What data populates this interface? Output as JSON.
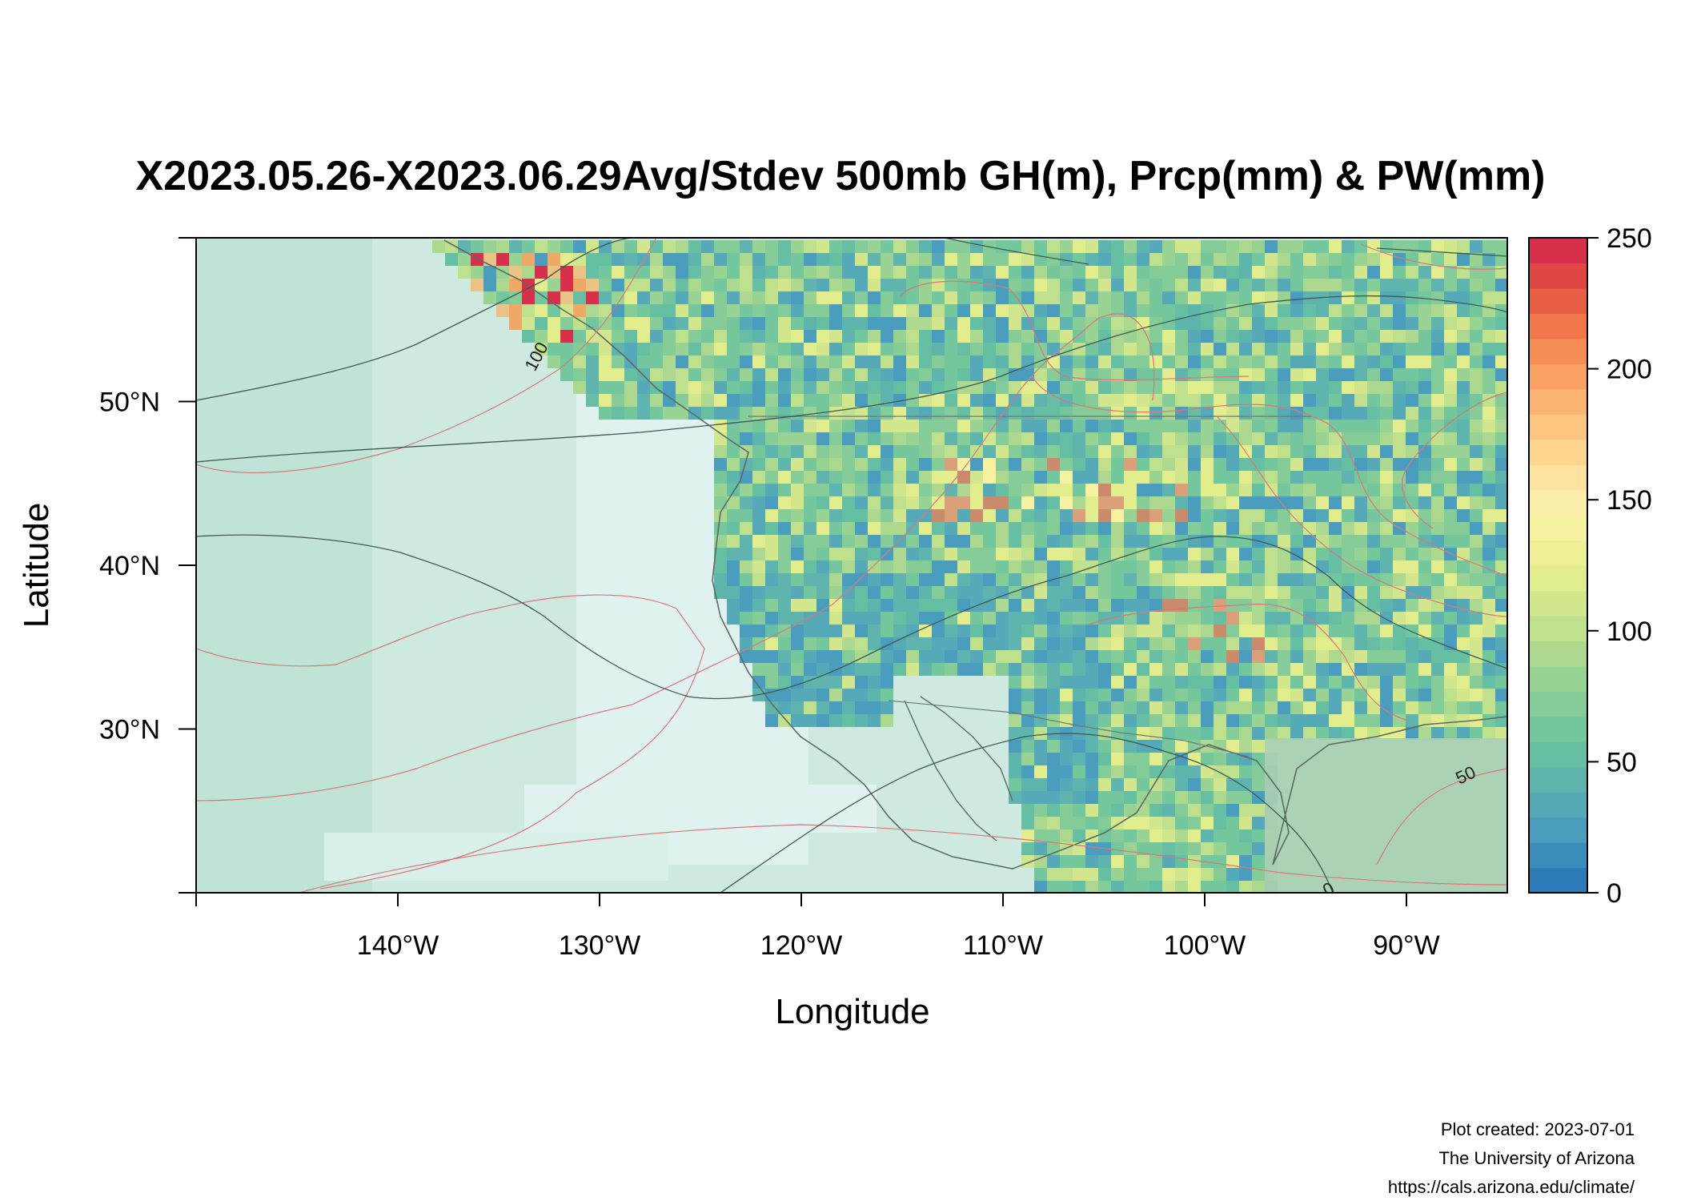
{
  "title": "X2023.05.26-X2023.06.29Avg/Stdev 500mb GH(m), Prcp(mm) & PW(mm)",
  "axes": {
    "x_label": "Longitude",
    "y_label": "Latitude",
    "x_ticks": [
      -140,
      -130,
      -120,
      -110,
      -100,
      -90
    ],
    "x_tick_labels": [
      "140°W",
      "130°W",
      "120°W",
      "110°W",
      "100°W",
      "90°W"
    ],
    "y_ticks": [
      30,
      40,
      50
    ],
    "y_tick_labels": [
      "30°N",
      "40°N",
      "50°N"
    ],
    "x_range": [
      -150,
      -85
    ],
    "y_range": [
      20,
      60
    ]
  },
  "colorbar": {
    "min": 0,
    "max": 250,
    "tick_values": [
      0,
      50,
      100,
      150,
      200,
      250
    ],
    "tick_labels": [
      "0",
      "50",
      "100",
      "150",
      "200",
      "250"
    ],
    "colors": [
      "#2c7bb6",
      "#3a8cbb",
      "#4a9dbc",
      "#56aab8",
      "#5fb5ad",
      "#66bfa2",
      "#74c69d",
      "#86cc98",
      "#99d393",
      "#acd98f",
      "#bfe08d",
      "#d2e78d",
      "#e2ee8e",
      "#efef95",
      "#f7f2a2",
      "#fbeeab",
      "#fde2a0",
      "#fdd58f",
      "#fcc57f",
      "#fbb471",
      "#f9a163",
      "#f58d55",
      "#f07749",
      "#e95f44",
      "#df4744",
      "#d7304a"
    ]
  },
  "contour_labels": [
    "100",
    "50",
    "0"
  ],
  "footer": {
    "created": "Plot created: 2023-07-01",
    "org": "The University of Arizona",
    "url": "https://cals.arizona.edu/climate/"
  }
}
